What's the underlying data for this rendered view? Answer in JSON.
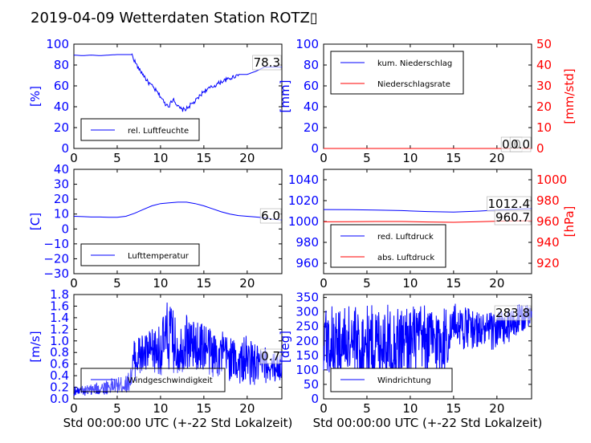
{
  "title": "2019-04-09 Wetterdaten Station ROTZ▯",
  "colors": {
    "blue": "#0000ff",
    "red": "#ff0000",
    "axis": "#000000"
  },
  "chart_data": [
    {
      "type": "line",
      "id": "humidity",
      "ylabel": "[%]",
      "xlim": [
        0,
        24
      ],
      "ylim": [
        0,
        100
      ],
      "xticks": [
        "0",
        "5",
        "10",
        "15",
        "20"
      ],
      "yticks": [
        "0",
        "20",
        "40",
        "60",
        "80",
        "100"
      ],
      "legend": [
        "rel. Luftfeuchte"
      ],
      "legend_position": "lower-left",
      "annotations": [
        "78.3"
      ],
      "grid": false,
      "series": [
        {
          "name": "rel. Luftfeuchte",
          "color": "#0000ff",
          "x": [
            0,
            1,
            2,
            3,
            4,
            5,
            6,
            6.7,
            7,
            7.5,
            8,
            8.5,
            9,
            9.5,
            10,
            10.5,
            11,
            11.5,
            12,
            12.5,
            13,
            13.5,
            14,
            14.5,
            15,
            16,
            17,
            18,
            19,
            20,
            21,
            22,
            23,
            24
          ],
          "y": [
            89.5,
            89,
            89.5,
            89,
            89.5,
            90,
            90,
            90,
            84,
            76,
            71,
            64,
            60,
            55,
            50,
            43,
            41,
            48,
            40,
            37,
            38,
            42,
            45,
            50,
            55,
            59,
            64,
            67,
            71,
            71,
            74,
            78,
            78,
            78
          ]
        }
      ]
    },
    {
      "type": "line",
      "id": "precip",
      "ylabel": "[mm]",
      "y2label": "[mm/std]",
      "xlim": [
        0,
        24
      ],
      "ylim": [
        0,
        100
      ],
      "y2lim": [
        0,
        50
      ],
      "xticks": [
        "0",
        "5",
        "10",
        "15",
        "20"
      ],
      "yticks": [
        "0",
        "20",
        "40",
        "60",
        "80",
        "100"
      ],
      "y2ticks": [
        "0",
        "10",
        "20",
        "30",
        "40",
        "50"
      ],
      "legend": [
        "kum. Niederschlag",
        "Niederschlagsrate"
      ],
      "legend_position": "upper-left",
      "annotations": [
        "0.0",
        "0.0"
      ],
      "grid": false,
      "series": [
        {
          "name": "kum. Niederschlag",
          "color": "#0000ff",
          "x": [
            0,
            24
          ],
          "y": [
            0,
            0
          ]
        },
        {
          "name": "Niederschlagsrate",
          "color": "#ff0000",
          "x": [
            0,
            24
          ],
          "y": [
            0,
            0
          ]
        }
      ]
    },
    {
      "type": "line",
      "id": "temperature",
      "ylabel": "[C]",
      "xlim": [
        0,
        24
      ],
      "ylim": [
        -30,
        40
      ],
      "xticks": [
        "0",
        "5",
        "10",
        "15",
        "20"
      ],
      "yticks": [
        "−30",
        "−20",
        "−10",
        "0",
        "10",
        "20",
        "30",
        "40"
      ],
      "legend": [
        "Lufttemperatur"
      ],
      "legend_position": "lower-left",
      "annotations": [
        "6.0"
      ],
      "grid": false,
      "series": [
        {
          "name": "Lufttemperatur",
          "color": "#0000ff",
          "x": [
            0,
            1,
            2,
            3,
            4,
            5,
            6,
            7,
            8,
            9,
            10,
            11,
            12,
            13,
            14,
            15,
            16,
            17,
            18,
            19,
            20,
            21,
            22,
            23,
            24
          ],
          "y": [
            8.5,
            8.3,
            8,
            8,
            7.8,
            7.8,
            8.5,
            10.5,
            13,
            15.5,
            17,
            17.5,
            18,
            18,
            17,
            15.5,
            13.5,
            11.5,
            10,
            9,
            8.5,
            8,
            7.5,
            6.5,
            6
          ]
        }
      ]
    },
    {
      "type": "line",
      "id": "pressure",
      "ylabel": "",
      "y2label": "[hPa]",
      "xlim": [
        0,
        24
      ],
      "ylim": [
        950,
        1050
      ],
      "y2lim": [
        910,
        1010
      ],
      "xticks": [
        "0",
        "5",
        "10",
        "15",
        "20"
      ],
      "yticks": [
        "960",
        "980",
        "1000",
        "1020",
        "1040"
      ],
      "y2ticks": [
        "920",
        "940",
        "960",
        "980",
        "1000"
      ],
      "legend": [
        "red. Luftdruck",
        "abs. Luftdruck"
      ],
      "legend_position": "lower-left",
      "annotations": [
        "1012.4",
        "960.7"
      ],
      "grid": false,
      "series": [
        {
          "name": "red. Luftdruck",
          "color": "#0000ff",
          "x": [
            0,
            3,
            6,
            9,
            12,
            15,
            18,
            21,
            24
          ],
          "y": [
            1011.5,
            1011.3,
            1011,
            1010.5,
            1009.5,
            1009,
            1010,
            1011.5,
            1012.4
          ]
        },
        {
          "name": "abs. Luftdruck",
          "color": "#ff0000",
          "x": [
            0,
            3,
            6,
            9,
            12,
            15,
            18,
            21,
            24
          ],
          "y": [
            959.7,
            959.8,
            960,
            960,
            959.5,
            959.2,
            959.8,
            960.5,
            960.7
          ]
        }
      ]
    },
    {
      "type": "line",
      "id": "windspeed",
      "ylabel": "[m/s]",
      "xlabel": "Std 00:00:00 UTC (+-22 Std Lokalzeit)",
      "xlim": [
        0,
        24
      ],
      "ylim": [
        0,
        1.8
      ],
      "xticks": [
        "0",
        "5",
        "10",
        "15",
        "20"
      ],
      "yticks": [
        "0.0",
        "0.2",
        "0.4",
        "0.6",
        "0.8",
        "1.0",
        "1.2",
        "1.4",
        "1.6",
        "1.8"
      ],
      "legend": [
        "Windgeschwindigkeit"
      ],
      "legend_position": "lower-left",
      "annotations": [
        "0.7"
      ],
      "grid": false,
      "series": [
        {
          "name": "Windgeschwindigkeit",
          "color": "#0000ff",
          "envelope_x": [
            0,
            2,
            4,
            6,
            6.5,
            7,
            8,
            9,
            10,
            11,
            12,
            13,
            14,
            15,
            16,
            17,
            18,
            19,
            20,
            21,
            22,
            23,
            24
          ],
          "envelope_high": [
            0.2,
            0.25,
            0.35,
            0.4,
            0.5,
            1.1,
            1.15,
            1.2,
            1.3,
            1.78,
            1.25,
            1.5,
            1.3,
            1.4,
            1.2,
            1.2,
            1.1,
            1.0,
            1.1,
            0.95,
            0.9,
            0.8,
            0.8
          ],
          "envelope_low": [
            0.05,
            0.05,
            0.08,
            0.1,
            0.15,
            0.3,
            0.35,
            0.4,
            0.4,
            0.45,
            0.4,
            0.5,
            0.5,
            0.45,
            0.35,
            0.35,
            0.3,
            0.25,
            0.25,
            0.2,
            0.25,
            0.3,
            0.3
          ]
        }
      ]
    },
    {
      "type": "line",
      "id": "winddir",
      "ylabel": "[deg]",
      "xlabel": "Std 00:00:00 UTC (+-22 Std Lokalzeit)",
      "xlim": [
        0,
        24
      ],
      "ylim": [
        0,
        360
      ],
      "xticks": [
        "0",
        "5",
        "10",
        "15",
        "20"
      ],
      "yticks": [
        "0",
        "50",
        "100",
        "150",
        "200",
        "250",
        "300",
        "350"
      ],
      "legend": [
        "Windrichtung"
      ],
      "legend_position": "lower-left",
      "annotations": [
        "283.8"
      ],
      "grid": false,
      "series": [
        {
          "name": "Windrichtung",
          "color": "#0000ff",
          "envelope_x": [
            0,
            1,
            2,
            3,
            4,
            5,
            6,
            7,
            8,
            9,
            10,
            11,
            12,
            13,
            14,
            14.5,
            15,
            16,
            17,
            18,
            19,
            20,
            21,
            22,
            23,
            24
          ],
          "envelope_high": [
            320,
            330,
            320,
            330,
            320,
            325,
            330,
            330,
            320,
            325,
            330,
            330,
            320,
            325,
            330,
            300,
            330,
            330,
            310,
            300,
            300,
            310,
            300,
            320,
            330,
            320
          ],
          "envelope_low": [
            60,
            80,
            40,
            90,
            30,
            70,
            60,
            90,
            40,
            80,
            60,
            70,
            80,
            60,
            80,
            140,
            200,
            170,
            170,
            180,
            160,
            170,
            180,
            200,
            230,
            260
          ]
        }
      ]
    }
  ]
}
